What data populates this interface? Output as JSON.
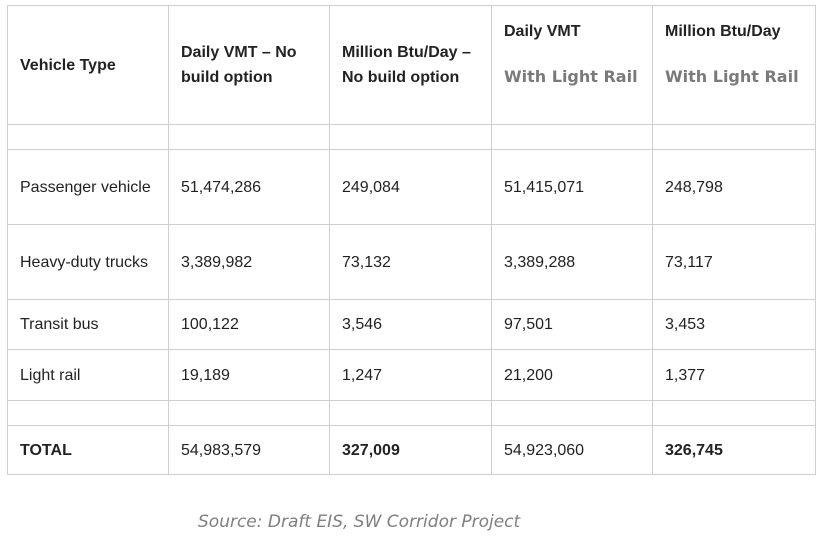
{
  "table": {
    "headers": {
      "vehicle_type": "Vehicle Type",
      "vmt_no_build": "Daily VMT – No build option",
      "btu_no_build": "Million Btu/Day – No build option",
      "vmt_rail_title": "Daily VMT",
      "vmt_rail_sub": "With Light Rail",
      "btu_rail_title": "Million Btu/Day",
      "btu_rail_sub": "With Light Rail"
    },
    "rows": [
      {
        "type": "Passenger vehicle",
        "vmt_no_build": "51,474,286",
        "btu_no_build": "249,084",
        "vmt_rail": "51,415,071",
        "btu_rail": "248,798"
      },
      {
        "type": "Heavy-duty trucks",
        "vmt_no_build": "3,389,982",
        "btu_no_build": "73,132",
        "vmt_rail": "3,389,288",
        "btu_rail": "73,117"
      },
      {
        "type": "Transit bus",
        "vmt_no_build": "100,122",
        "btu_no_build": "3,546",
        "vmt_rail": "97,501",
        "btu_rail": "3,453"
      },
      {
        "type": "Light rail",
        "vmt_no_build": "19,189",
        "btu_no_build": "1,247",
        "vmt_rail": "21,200",
        "btu_rail": "1,377"
      }
    ],
    "total": {
      "type": "TOTAL",
      "vmt_no_build": "54,983,579",
      "btu_no_build": "327,009",
      "vmt_rail": "54,923,060",
      "btu_rail": "326,745"
    }
  },
  "caption": "Source: Draft EIS, SW Corridor Project"
}
